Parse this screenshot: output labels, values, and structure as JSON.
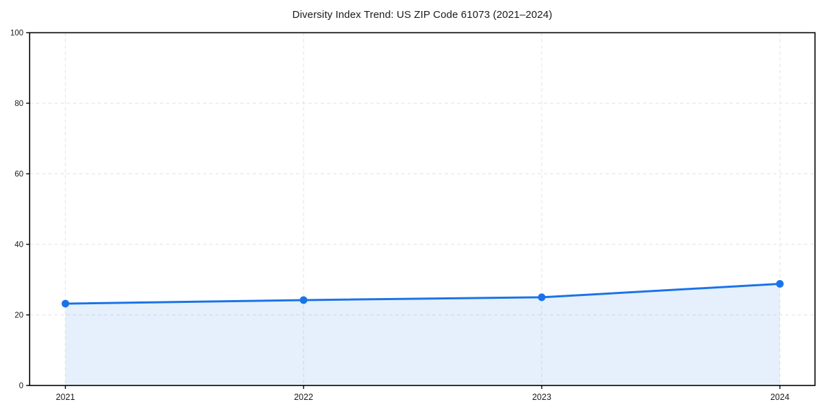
{
  "chart_data": {
    "type": "area",
    "title": "Diversity Index Trend: US ZIP Code 61073 (2021–2024)",
    "x": [
      2021,
      2022,
      2023,
      2024
    ],
    "categories": [
      "2021",
      "2022",
      "2023",
      "2024"
    ],
    "series": [
      {
        "name": "Diversity Index",
        "values": [
          23.2,
          24.2,
          25.0,
          28.8
        ]
      }
    ],
    "xlabel": "",
    "ylabel": "",
    "ylim": [
      0,
      100
    ],
    "yticks": [
      0,
      20,
      40,
      60,
      80,
      100
    ],
    "grid": true,
    "grid_style": "dashed",
    "legend": "none",
    "colors": {
      "line": "#1a73e8",
      "marker": "#1a73e8",
      "fill": "rgba(26,115,232,0.11)",
      "grid": "#e7e7e7",
      "spine": "#000000",
      "tick_label": "#1a1a1a",
      "background": "#ffffff"
    }
  }
}
